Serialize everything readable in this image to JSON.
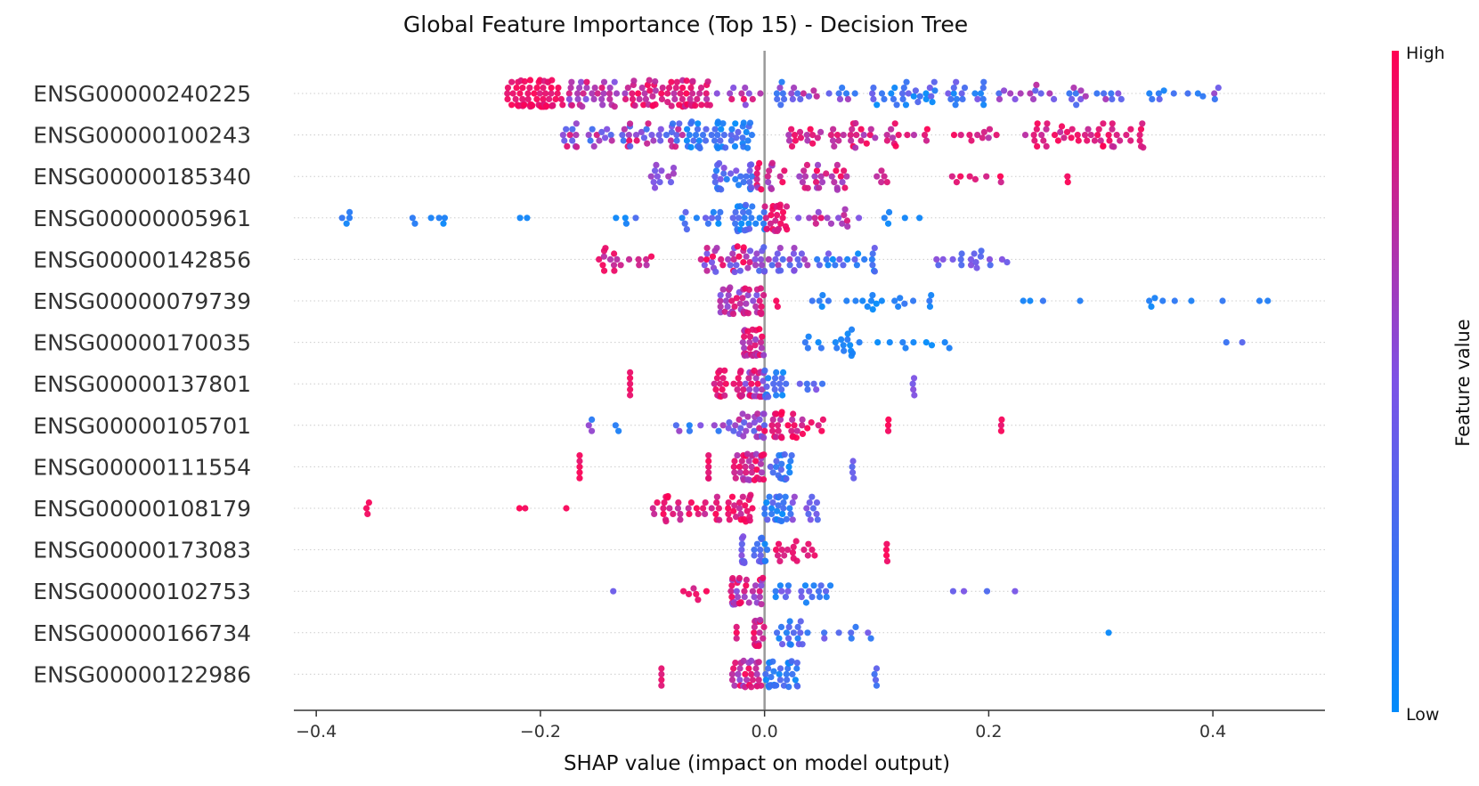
{
  "chart_data": {
    "type": "scatter",
    "subtype": "shap-beeswarm",
    "title": "Global Feature Importance (Top 15) - Decision Tree",
    "xlabel": "SHAP value (impact on model output)",
    "xlim": [
      -0.42,
      0.5
    ],
    "xticks": [
      -0.4,
      -0.2,
      0.0,
      0.2,
      0.4
    ],
    "xtick_labels": [
      "−0.4",
      "−0.2",
      "0.0",
      "0.2",
      "0.4"
    ],
    "zero_line": true,
    "grid": "horizontal-dotted",
    "colorbar": {
      "label": "Feature value",
      "high_label": "High",
      "low_label": "Low",
      "low_color": "#008bfb",
      "mid_color": "#7c52e6",
      "high_color": "#ff0052"
    },
    "features": [
      {
        "name": "ENSG00000240225",
        "groups": [
          {
            "x": [
              -0.23,
              -0.18
            ],
            "n": 70,
            "c": [
              0.85,
              1.0
            ]
          },
          {
            "x": [
              -0.18,
              -0.12
            ],
            "n": 35,
            "c": [
              0.5,
              0.9
            ]
          },
          {
            "x": [
              -0.12,
              -0.05
            ],
            "n": 65,
            "c": [
              0.7,
              1.0
            ]
          },
          {
            "x": [
              -0.05,
              0.0
            ],
            "n": 12,
            "c": [
              0.5,
              0.95
            ]
          },
          {
            "x": [
              0.01,
              0.08
            ],
            "n": 22,
            "c": [
              0.1,
              0.8
            ]
          },
          {
            "x": [
              0.08,
              0.2
            ],
            "n": 45,
            "c": [
              0.0,
              0.5
            ]
          },
          {
            "x": [
              0.2,
              0.33
            ],
            "n": 28,
            "c": [
              0.2,
              0.75
            ]
          },
          {
            "x": [
              0.33,
              0.41
            ],
            "n": 12,
            "c": [
              0.0,
              0.6
            ]
          }
        ]
      },
      {
        "name": "ENSG00000100243",
        "groups": [
          {
            "x": [
              -0.18,
              -0.07
            ],
            "n": 55,
            "c": [
              0.2,
              0.95
            ]
          },
          {
            "x": [
              -0.07,
              -0.01
            ],
            "n": 50,
            "c": [
              0.0,
              0.4
            ]
          },
          {
            "x": [
              0.02,
              0.12
            ],
            "n": 45,
            "c": [
              0.65,
              1.0
            ]
          },
          {
            "x": [
              0.12,
              0.24
            ],
            "n": 16,
            "c": [
              0.7,
              1.0
            ]
          },
          {
            "x": [
              0.24,
              0.345
            ],
            "n": 48,
            "c": [
              0.75,
              1.0
            ]
          }
        ]
      },
      {
        "name": "ENSG00000185340",
        "groups": [
          {
            "x": [
              -0.11,
              -0.08
            ],
            "n": 12,
            "c": [
              0.4,
              0.7
            ]
          },
          {
            "x": [
              -0.045,
              -0.01
            ],
            "n": 28,
            "c": [
              0.1,
              0.55
            ]
          },
          {
            "x": [
              -0.01,
              0.08
            ],
            "n": 45,
            "c": [
              0.6,
              1.0
            ]
          },
          {
            "x": [
              0.1,
              0.11
            ],
            "n": 5,
            "c": [
              0.7,
              0.9
            ]
          },
          {
            "x": [
              0.16,
              0.22
            ],
            "n": 8,
            "c": [
              0.8,
              1.0
            ]
          },
          {
            "x": [
              0.27,
              0.272
            ],
            "n": 2,
            "c": [
              0.95,
              1.0
            ]
          }
        ]
      },
      {
        "name": "ENSG00000005961",
        "groups": [
          {
            "x": [
              -0.38,
              -0.37
            ],
            "n": 4,
            "c": [
              0.0,
              0.2
            ]
          },
          {
            "x": [
              -0.32,
              -0.27
            ],
            "n": 6,
            "c": [
              0.0,
              0.3
            ]
          },
          {
            "x": [
              -0.22,
              -0.2
            ],
            "n": 2,
            "c": [
              0.0,
              0.1
            ]
          },
          {
            "x": [
              -0.14,
              -0.1
            ],
            "n": 4,
            "c": [
              0.0,
              0.3
            ]
          },
          {
            "x": [
              -0.08,
              0.0
            ],
            "n": 38,
            "c": [
              0.0,
              0.45
            ]
          },
          {
            "x": [
              0.0,
              0.02
            ],
            "n": 25,
            "c": [
              0.75,
              1.0
            ]
          },
          {
            "x": [
              0.03,
              0.085
            ],
            "n": 15,
            "c": [
              0.5,
              0.95
            ]
          },
          {
            "x": [
              0.1,
              0.14
            ],
            "n": 5,
            "c": [
              0.0,
              0.15
            ]
          }
        ]
      },
      {
        "name": "ENSG00000142856",
        "groups": [
          {
            "x": [
              -0.15,
              -0.1
            ],
            "n": 18,
            "c": [
              0.7,
              1.0
            ]
          },
          {
            "x": [
              -0.06,
              -0.01
            ],
            "n": 32,
            "c": [
              0.4,
              1.0
            ]
          },
          {
            "x": [
              -0.01,
              0.04
            ],
            "n": 30,
            "c": [
              0.3,
              0.7
            ]
          },
          {
            "x": [
              0.04,
              0.1
            ],
            "n": 20,
            "c": [
              0.0,
              0.5
            ]
          },
          {
            "x": [
              0.15,
              0.22
            ],
            "n": 18,
            "c": [
              0.3,
              0.55
            ]
          }
        ]
      },
      {
        "name": "ENSG00000079739",
        "groups": [
          {
            "x": [
              -0.04,
              0.0
            ],
            "n": 45,
            "c": [
              0.45,
              0.95
            ]
          },
          {
            "x": [
              0.01,
              0.015
            ],
            "n": 2,
            "c": [
              0.9,
              1.0
            ]
          },
          {
            "x": [
              0.04,
              0.15
            ],
            "n": 22,
            "c": [
              0.0,
              0.25
            ]
          },
          {
            "x": [
              0.215,
              0.29
            ],
            "n": 4,
            "c": [
              0.0,
              0.2
            ]
          },
          {
            "x": [
              0.34,
              0.46
            ],
            "n": 9,
            "c": [
              0.0,
              0.2
            ]
          }
        ]
      },
      {
        "name": "ENSG00000170035",
        "groups": [
          {
            "x": [
              -0.02,
              0.0
            ],
            "n": 40,
            "c": [
              0.6,
              1.0
            ]
          },
          {
            "x": [
              0.035,
              0.085
            ],
            "n": 18,
            "c": [
              0.0,
              0.2
            ]
          },
          {
            "x": [
              0.1,
              0.165
            ],
            "n": 9,
            "c": [
              0.0,
              0.2
            ]
          },
          {
            "x": [
              0.375,
              0.455
            ],
            "n": 2,
            "c": [
              0.1,
              0.4
            ]
          }
        ]
      },
      {
        "name": "ENSG00000137801",
        "groups": [
          {
            "x": [
              -0.12,
              -0.12
            ],
            "n": 5,
            "c": [
              0.9,
              1.0
            ]
          },
          {
            "x": [
              -0.045,
              -0.02
            ],
            "n": 25,
            "c": [
              0.8,
              1.0
            ]
          },
          {
            "x": [
              -0.02,
              0.0
            ],
            "n": 25,
            "c": [
              0.5,
              1.0
            ]
          },
          {
            "x": [
              0.0,
              0.02
            ],
            "n": 22,
            "c": [
              0.0,
              0.4
            ]
          },
          {
            "x": [
              0.03,
              0.052
            ],
            "n": 6,
            "c": [
              0.2,
              0.55
            ]
          },
          {
            "x": [
              0.132,
              0.134
            ],
            "n": 4,
            "c": [
              0.4,
              0.55
            ]
          }
        ]
      },
      {
        "name": "ENSG00000105701",
        "groups": [
          {
            "x": [
              -0.158,
              -0.13
            ],
            "n": 5,
            "c": [
              0.1,
              0.6
            ]
          },
          {
            "x": [
              -0.085,
              -0.03
            ],
            "n": 10,
            "c": [
              0.0,
              0.7
            ]
          },
          {
            "x": [
              -0.03,
              0.0
            ],
            "n": 25,
            "c": [
              0.3,
              0.9
            ]
          },
          {
            "x": [
              0.0,
              0.03
            ],
            "n": 25,
            "c": [
              0.7,
              1.0
            ]
          },
          {
            "x": [
              0.03,
              0.06
            ],
            "n": 8,
            "c": [
              0.7,
              1.0
            ]
          },
          {
            "x": [
              0.11,
              0.112
            ],
            "n": 3,
            "c": [
              0.9,
              1.0
            ]
          },
          {
            "x": [
              0.21,
              0.212
            ],
            "n": 3,
            "c": [
              0.85,
              1.0
            ]
          }
        ]
      },
      {
        "name": "ENSG00000111554",
        "groups": [
          {
            "x": [
              -0.165,
              -0.165
            ],
            "n": 5,
            "c": [
              0.9,
              1.0
            ]
          },
          {
            "x": [
              -0.05,
              -0.05
            ],
            "n": 6,
            "c": [
              0.8,
              1.0
            ]
          },
          {
            "x": [
              -0.03,
              0.0
            ],
            "n": 35,
            "c": [
              0.6,
              1.0
            ]
          },
          {
            "x": [
              0.005,
              0.025
            ],
            "n": 22,
            "c": [
              0.0,
              0.4
            ]
          },
          {
            "x": [
              0.078,
              0.08
            ],
            "n": 4,
            "c": [
              0.2,
              0.5
            ]
          }
        ]
      },
      {
        "name": "ENSG00000108179",
        "groups": [
          {
            "x": [
              -0.36,
              -0.35
            ],
            "n": 3,
            "c": [
              0.95,
              1.0
            ]
          },
          {
            "x": [
              -0.23,
              -0.17
            ],
            "n": 3,
            "c": [
              0.95,
              1.0
            ]
          },
          {
            "x": [
              -0.1,
              -0.01
            ],
            "n": 55,
            "c": [
              0.75,
              1.0
            ]
          },
          {
            "x": [
              0.0,
              0.025
            ],
            "n": 25,
            "c": [
              0.0,
              0.4
            ]
          },
          {
            "x": [
              0.025,
              0.055
            ],
            "n": 12,
            "c": [
              0.3,
              0.7
            ]
          }
        ]
      },
      {
        "name": "ENSG00000173083",
        "groups": [
          {
            "x": [
              -0.022,
              -0.018
            ],
            "n": 12,
            "c": [
              0.3,
              0.55
            ]
          },
          {
            "x": [
              -0.01,
              0.0
            ],
            "n": 12,
            "c": [
              0.2,
              0.5
            ]
          },
          {
            "x": [
              0.0,
              0.005
            ],
            "n": 4,
            "c": [
              0.0,
              0.2
            ]
          },
          {
            "x": [
              0.01,
              0.03
            ],
            "n": 12,
            "c": [
              0.8,
              1.0
            ]
          },
          {
            "x": [
              0.035,
              0.045
            ],
            "n": 5,
            "c": [
              0.75,
              1.0
            ]
          },
          {
            "x": [
              0.108,
              0.11
            ],
            "n": 4,
            "c": [
              0.9,
              1.0
            ]
          }
        ]
      },
      {
        "name": "ENSG00000102753",
        "groups": [
          {
            "x": [
              -0.135,
              -0.135
            ],
            "n": 1,
            "c": [
              0.4,
              0.5
            ]
          },
          {
            "x": [
              -0.075,
              -0.05
            ],
            "n": 6,
            "c": [
              0.8,
              1.0
            ]
          },
          {
            "x": [
              -0.03,
              0.0
            ],
            "n": 35,
            "c": [
              0.5,
              1.0
            ]
          },
          {
            "x": [
              0.005,
              0.06
            ],
            "n": 20,
            "c": [
              0.0,
              0.5
            ]
          },
          {
            "x": [
              0.155,
              0.235
            ],
            "n": 4,
            "c": [
              0.3,
              0.5
            ]
          }
        ]
      },
      {
        "name": "ENSG00000166734",
        "groups": [
          {
            "x": [
              -0.025,
              -0.025
            ],
            "n": 3,
            "c": [
              0.8,
              1.0
            ]
          },
          {
            "x": [
              -0.01,
              0.0
            ],
            "n": 25,
            "c": [
              0.7,
              1.0
            ]
          },
          {
            "x": [
              0.01,
              0.04
            ],
            "n": 18,
            "c": [
              0.0,
              0.45
            ]
          },
          {
            "x": [
              0.05,
              0.095
            ],
            "n": 8,
            "c": [
              0.1,
              0.5
            ]
          },
          {
            "x": [
              0.307,
              0.307
            ],
            "n": 1,
            "c": [
              0.0,
              0.05
            ]
          }
        ]
      },
      {
        "name": "ENSG00000122986",
        "groups": [
          {
            "x": [
              -0.092,
              -0.092
            ],
            "n": 4,
            "c": [
              0.85,
              1.0
            ]
          },
          {
            "x": [
              -0.03,
              -0.003
            ],
            "n": 30,
            "c": [
              0.55,
              1.0
            ]
          },
          {
            "x": [
              0.0,
              0.03
            ],
            "n": 35,
            "c": [
              0.0,
              0.35
            ]
          },
          {
            "x": [
              0.098,
              0.1
            ],
            "n": 4,
            "c": [
              0.2,
              0.5
            ]
          }
        ]
      }
    ]
  }
}
